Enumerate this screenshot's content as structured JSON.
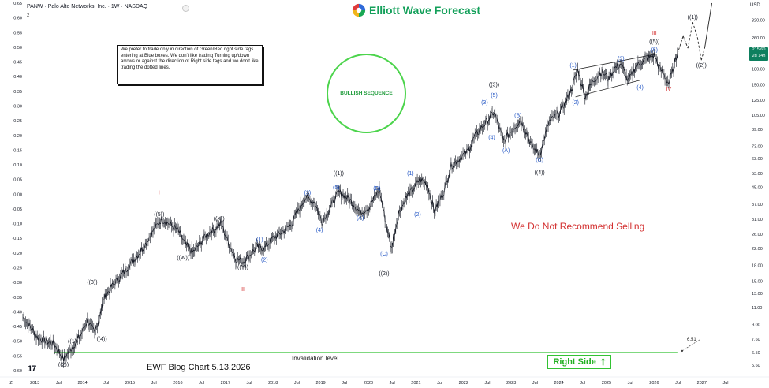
{
  "header": {
    "title": "PANW · Palo Alto Networks, Inc. · 1W · NASDAQ",
    "sub": "2"
  },
  "brand": {
    "name": "Elliott Wave Forecast",
    "colors": [
      "#2f6ad9",
      "#19a854",
      "#f1b51b",
      "#e03b3b"
    ]
  },
  "note": "We prefer to trade only in direction of Green/Red right side tags entering at Blue boxes. We don't like trading Turning up/down arrows or against the direction of Right side tags and we don't like trading the dotted lines.",
  "bullish_label": "BULLISH SEQUENCE",
  "no_sell_label": "We Do Not Recommend Selling",
  "footer_label": "EWF Blog Chart 5.13.2026",
  "tv_logo": "17",
  "right_side_label": "Right Side",
  "right_side_arrow": "⭡",
  "invalidation_label": "Invalidation level",
  "current_value_label": "6.51",
  "price_axis_unit": "USD",
  "price_tag": {
    "value": "215.60",
    "countdown": "2d 14h"
  },
  "colors": {
    "price": "#131722",
    "wave_blue": "#2457c5",
    "wave_red": "#d32f2f",
    "green": "#33c233",
    "tag": "#0d7f5e"
  },
  "chart_data": {
    "type": "line",
    "title": "PANW · Palo Alto Networks, Inc. · 1W · NASDAQ",
    "xlabel": "",
    "ylabel": "",
    "x_ticks": [
      "Z",
      "2013",
      "Jul",
      "2014",
      "Jul",
      "2015",
      "Jul",
      "2016",
      "Jul",
      "2017",
      "Jul",
      "2018",
      "Jul",
      "2019",
      "Jul",
      "2020",
      "Jul",
      "2021",
      "Jul",
      "2022",
      "Jul",
      "2023",
      "Jul",
      "2024",
      "Jul",
      "2025",
      "Jul",
      "2026",
      "Jul",
      "2027",
      "Jul"
    ],
    "xlim": [
      2012.75,
      2027.8
    ],
    "left_axis": {
      "ticks": [
        "0.65",
        "0.60",
        "0.55",
        "0.50",
        "0.45",
        "0.40",
        "0.35",
        "0.30",
        "0.25",
        "0.20",
        "0.15",
        "0.10",
        "0.05",
        "0.00",
        "-0.05",
        "-0.10",
        "-0.15",
        "-0.20",
        "-0.25",
        "-0.30",
        "-0.35",
        "-0.40",
        "-0.45",
        "-0.50",
        "-0.55",
        "-0.60"
      ],
      "ylim": [
        -0.6,
        0.65
      ]
    },
    "right_axis": {
      "ticks": [
        "320.00",
        "260.00",
        "215.60",
        "180.00",
        "150.00",
        "125.00",
        "105.00",
        "89.00",
        "73.00",
        "63.00",
        "53.00",
        "45.00",
        "37.00",
        "31.00",
        "26.00",
        "22.00",
        "18.00",
        "15.00",
        "13.00",
        "11.00",
        "9.00",
        "7.60",
        "6.50",
        "5.60"
      ],
      "scale": "log",
      "ylim": [
        5.25,
        390
      ]
    },
    "series": [
      {
        "x": [
          2012.7,
          2012.85,
          2013.0,
          2013.2,
          2013.35,
          2013.55,
          2013.9,
          2014.05,
          2014.2,
          2014.4,
          2014.55,
          2014.8,
          2015.0,
          2015.2,
          2015.4,
          2015.6,
          2015.75,
          2015.95,
          2016.1,
          2016.25,
          2016.35,
          2016.55,
          2016.7,
          2016.85,
          2016.95,
          2017.15,
          2017.3,
          2017.45,
          2017.6,
          2017.75,
          2017.9,
          2018.1,
          2018.3,
          2018.45,
          2018.6,
          2018.8,
          2018.95,
          2019.05,
          2019.2,
          2019.3,
          2019.45,
          2019.6,
          2019.75,
          2019.95,
          2020.1,
          2020.15,
          2020.25,
          2020.4,
          2020.55,
          2020.7,
          2020.85,
          2021.0,
          2021.15,
          2021.3,
          2021.5,
          2021.65,
          2021.8,
          2022.0,
          2022.15,
          2022.3,
          2022.45,
          2022.55,
          2022.75,
          2022.95,
          2023.1,
          2023.25,
          2023.35,
          2023.5,
          2023.7,
          2023.9,
          2024.05,
          2024.15,
          2024.3,
          2024.45,
          2024.6,
          2024.8,
          2024.95,
          2025.05,
          2025.2,
          2025.35,
          2025.5,
          2025.65,
          2025.8,
          2025.9,
          2026.0,
          2026.1,
          2026.2,
          2026.3,
          2026.38
        ],
        "y": [
          9.8,
          8.8,
          7.8,
          7.4,
          7.2,
          6.0,
          7.9,
          9.5,
          8.1,
          12.3,
          14.0,
          16.5,
          19.0,
          22.0,
          26.5,
          31.0,
          29.5,
          27.0,
          23.0,
          21.0,
          22.5,
          26.0,
          27.5,
          29.5,
          25.0,
          19.5,
          18.8,
          20.5,
          22.5,
          22.0,
          24.5,
          26.5,
          29.0,
          34.0,
          40.0,
          38.0,
          30.0,
          33.0,
          38.5,
          42.5,
          40.5,
          37.5,
          33.5,
          36.0,
          42.0,
          44.0,
          33.0,
          22.0,
          33.0,
          39.5,
          44.0,
          49.5,
          47.0,
          34.0,
          43.0,
          58.0,
          62.0,
          69.0,
          82.0,
          92.0,
          101.0,
          109.0,
          77.0,
          90.0,
          99.0,
          83.0,
          72.0,
          66.0,
          97.0,
          107.0,
          123.0,
          139.0,
          178.0,
          130.0,
          155.0,
          175.0,
          160.0,
          180.0,
          192.0,
          155.0,
          185.0,
          197.0,
          206.0,
          213.0,
          183.0,
          168.0,
          152.0,
          181.0,
          215.6
        ]
      }
    ],
    "projection": {
      "x": [
        2026.38,
        2026.5,
        2026.6,
        2026.7,
        2026.8,
        2026.88,
        2026.95,
        2027.1
      ],
      "y": [
        215.6,
        265.0,
        230.0,
        312.0,
        260.0,
        200.0,
        230.0,
        390.0
      ]
    },
    "annotations": [
      {
        "text": "((1))",
        "x": 2013.75,
        "y": 7.9,
        "pos": "below",
        "color": "#131722"
      },
      {
        "text": "((2))",
        "x": 2013.55,
        "y": 6.0,
        "pos": "below",
        "color": "#131722"
      },
      {
        "text": "((3))",
        "x": 2014.15,
        "y": 14.0,
        "pos": "above",
        "color": "#131722"
      },
      {
        "text": "((4))",
        "x": 2014.35,
        "y": 8.1,
        "pos": "below",
        "color": "#131722"
      },
      {
        "text": "((5))",
        "x": 2015.55,
        "y": 31.0,
        "pos": "above",
        "color": "#131722"
      },
      {
        "text": "I",
        "x": 2015.55,
        "y": 40.0,
        "pos": "above",
        "color": "#d32f2f"
      },
      {
        "text": "((W))",
        "x": 2016.05,
        "y": 21.0,
        "pos": "below",
        "color": "#131722"
      },
      {
        "text": "((X))",
        "x": 2016.8,
        "y": 29.5,
        "pos": "above",
        "color": "#131722"
      },
      {
        "text": "((Y))",
        "x": 2017.3,
        "y": 18.8,
        "pos": "below",
        "color": "#131722"
      },
      {
        "text": "II",
        "x": 2017.3,
        "y": 14.5,
        "pos": "below",
        "color": "#d32f2f"
      },
      {
        "text": "(1)",
        "x": 2017.65,
        "y": 23.0,
        "pos": "above",
        "color": "#2457c5"
      },
      {
        "text": "(2)",
        "x": 2017.75,
        "y": 20.5,
        "pos": "below",
        "color": "#2457c5"
      },
      {
        "text": "(3)",
        "x": 2018.65,
        "y": 40.0,
        "pos": "above",
        "color": "#2457c5"
      },
      {
        "text": "(4)",
        "x": 2018.9,
        "y": 29.0,
        "pos": "below",
        "color": "#2457c5"
      },
      {
        "text": "(5)",
        "x": 2019.25,
        "y": 42.5,
        "pos": "above",
        "color": "#2457c5"
      },
      {
        "text": "((1))",
        "x": 2019.3,
        "y": 50.0,
        "pos": "above",
        "color": "#131722"
      },
      {
        "text": "(A)",
        "x": 2019.75,
        "y": 33.5,
        "pos": "below",
        "color": "#2457c5"
      },
      {
        "text": "(B)",
        "x": 2020.1,
        "y": 42.0,
        "pos": "above",
        "color": "#2457c5"
      },
      {
        "text": "(C)",
        "x": 2020.25,
        "y": 22.0,
        "pos": "below",
        "color": "#2457c5"
      },
      {
        "text": "((2))",
        "x": 2020.25,
        "y": 17.5,
        "pos": "below",
        "color": "#131722"
      },
      {
        "text": "(1)",
        "x": 2020.8,
        "y": 50.0,
        "pos": "above",
        "color": "#2457c5"
      },
      {
        "text": "(2)",
        "x": 2020.95,
        "y": 35.0,
        "pos": "below",
        "color": "#2457c5"
      },
      {
        "text": "(3)",
        "x": 2022.35,
        "y": 115.0,
        "pos": "above",
        "color": "#2457c5"
      },
      {
        "text": "(5)",
        "x": 2022.55,
        "y": 125.0,
        "pos": "above",
        "color": "#2457c5"
      },
      {
        "text": "((3))",
        "x": 2022.55,
        "y": 142.0,
        "pos": "above",
        "color": "#131722"
      },
      {
        "text": "(4)",
        "x": 2022.5,
        "y": 86.0,
        "pos": "below",
        "color": "#2457c5"
      },
      {
        "text": "(A)",
        "x": 2022.8,
        "y": 74.0,
        "pos": "below",
        "color": "#2457c5"
      },
      {
        "text": "(B)",
        "x": 2023.05,
        "y": 99.0,
        "pos": "above",
        "color": "#2457c5"
      },
      {
        "text": "(C)",
        "x": 2023.5,
        "y": 66.0,
        "pos": "below",
        "color": "#2457c5"
      },
      {
        "text": "((4))",
        "x": 2023.5,
        "y": 57.0,
        "pos": "below",
        "color": "#131722"
      },
      {
        "text": "(1)",
        "x": 2024.2,
        "y": 178.0,
        "pos": "above",
        "color": "#2457c5"
      },
      {
        "text": "(2)",
        "x": 2024.25,
        "y": 130.0,
        "pos": "below",
        "color": "#2457c5"
      },
      {
        "text": "(3)",
        "x": 2025.2,
        "y": 192.0,
        "pos": "above",
        "color": "#2457c5"
      },
      {
        "text": "(4)",
        "x": 2025.6,
        "y": 155.0,
        "pos": "below",
        "color": "#2457c5"
      },
      {
        "text": "(5)",
        "x": 2025.9,
        "y": 213.0,
        "pos": "above",
        "color": "#2457c5"
      },
      {
        "text": "((5))",
        "x": 2025.9,
        "y": 235.0,
        "pos": "above",
        "color": "#131722"
      },
      {
        "text": "III",
        "x": 2025.9,
        "y": 260.0,
        "pos": "above",
        "color": "#d32f2f"
      },
      {
        "text": "IV",
        "x": 2026.2,
        "y": 152.0,
        "pos": "below",
        "color": "#d32f2f"
      },
      {
        "text": "((1))",
        "x": 2026.7,
        "y": 312.0,
        "pos": "above",
        "color": "#131722"
      },
      {
        "text": "((2))",
        "x": 2026.88,
        "y": 200.0,
        "pos": "below",
        "color": "#131722"
      }
    ],
    "channel": [
      [
        2024.2,
        178.0,
        2025.95,
        215.0
      ],
      [
        2024.25,
        130.0,
        2025.6,
        158.0
      ]
    ],
    "invalidation_level": 6.5,
    "grid": false,
    "legend": "none"
  }
}
